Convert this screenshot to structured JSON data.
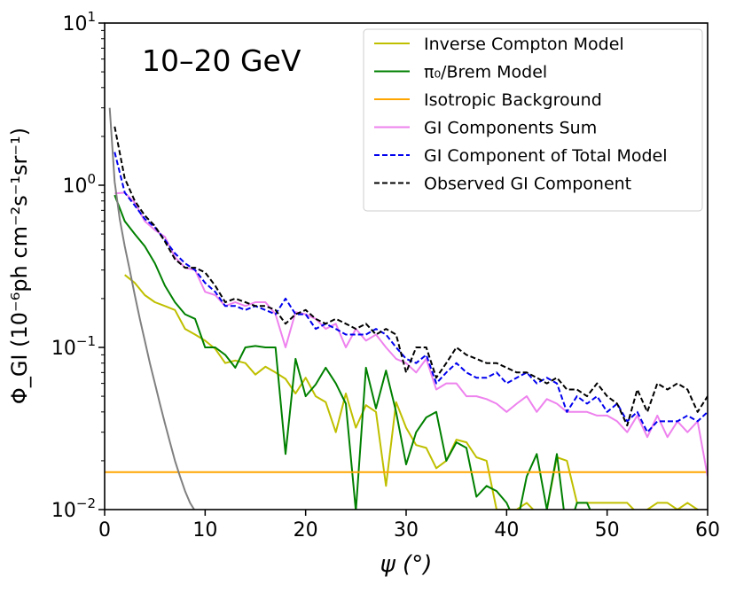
{
  "chart_data": {
    "type": "line",
    "title": "10–20 GeV",
    "xlabel": "ψ (°)",
    "ylabel": "Φ_GI (10⁻⁶ph cm⁻²s⁻¹sr⁻¹)",
    "xlim": [
      0,
      60
    ],
    "ylim_log10": [
      -2,
      1
    ],
    "y_scale": "log",
    "legend_position": "top-right",
    "x_ticks": [
      0,
      10,
      20,
      30,
      40,
      50,
      60
    ],
    "y_ticks_log10": [
      -2,
      -1,
      0,
      1
    ],
    "y_tick_mantissa": "10",
    "series": [
      {
        "name": "Inverse Compton Model",
        "color": "#bfbf00",
        "style": "solid",
        "x": [
          2,
          3,
          4,
          5,
          6,
          7,
          8,
          9,
          10,
          11,
          12,
          13,
          14,
          15,
          16,
          17,
          18,
          19,
          20,
          21,
          22,
          23,
          24,
          25,
          26,
          27,
          28,
          29,
          30,
          31,
          32,
          33,
          34,
          35,
          36,
          37,
          38,
          39,
          40,
          41,
          42,
          43,
          44,
          45,
          46,
          47,
          48,
          49,
          50,
          51,
          52,
          53,
          54,
          55,
          56,
          57,
          58,
          59,
          60
        ],
        "y": [
          0.28,
          0.25,
          0.21,
          0.19,
          0.18,
          0.17,
          0.13,
          0.12,
          0.11,
          0.098,
          0.08,
          0.083,
          0.08,
          0.068,
          0.076,
          0.07,
          0.064,
          0.052,
          0.065,
          0.05,
          0.046,
          0.03,
          0.052,
          0.032,
          0.044,
          0.04,
          0.014,
          0.046,
          0.032,
          0.025,
          0.024,
          0.018,
          0.02,
          0.027,
          0.026,
          0.021,
          0.02,
          0.01,
          0.01,
          0.01,
          0.011,
          0.0095,
          0.01,
          0.021,
          0.02,
          0.011,
          0.011,
          0.011,
          0.011,
          0.011,
          0.011,
          0.0095,
          0.01,
          0.011,
          0.011,
          0.01,
          0.011,
          0.01,
          0.0095
        ]
      },
      {
        "name": "π₀/Brem Model",
        "color": "#008000",
        "style": "solid",
        "x": [
          1,
          2,
          3,
          4,
          5,
          6,
          7,
          8,
          9,
          10,
          11,
          12,
          13,
          14,
          15,
          16,
          17,
          18,
          19,
          20,
          21,
          22,
          23,
          24,
          25,
          26,
          27,
          28,
          29,
          30,
          31,
          32,
          33,
          34,
          35,
          36,
          37,
          38,
          39,
          40,
          41,
          42,
          43,
          44,
          45,
          46,
          47,
          48,
          49,
          50,
          51,
          52,
          53,
          54,
          55,
          56,
          57,
          58,
          59,
          60
        ],
        "y": [
          0.87,
          0.6,
          0.5,
          0.42,
          0.33,
          0.24,
          0.19,
          0.16,
          0.15,
          0.1,
          0.1,
          0.09,
          0.075,
          0.1,
          0.102,
          0.1,
          0.1,
          0.022,
          0.085,
          0.05,
          0.059,
          0.075,
          0.06,
          0.045,
          0.0098,
          0.075,
          0.042,
          0.072,
          0.04,
          0.019,
          0.03,
          0.037,
          0.04,
          0.02,
          0.026,
          0.024,
          0.012,
          0.014,
          0.013,
          0.011,
          0.008,
          0.016,
          0.022,
          0.01,
          0.022,
          0.007,
          0.011,
          0.011,
          0.008,
          0.009,
          0.006,
          0.009,
          0.008,
          0.009,
          0.008,
          0.009,
          0.008,
          0.009,
          0.01,
          0.009
        ]
      },
      {
        "name": "Isotropic Background",
        "color": "#ffa500",
        "style": "solid",
        "x": [
          0,
          60
        ],
        "y": [
          0.017,
          0.017
        ]
      },
      {
        "name": "GI Components Sum",
        "color": "#ee82ee",
        "style": "solid",
        "x": [
          1,
          2,
          3,
          4,
          5,
          6,
          7,
          8,
          9,
          10,
          11,
          12,
          13,
          14,
          15,
          16,
          17,
          18,
          19,
          20,
          21,
          22,
          23,
          24,
          25,
          26,
          27,
          28,
          29,
          30,
          31,
          32,
          33,
          34,
          35,
          36,
          37,
          38,
          39,
          40,
          41,
          42,
          43,
          44,
          45,
          46,
          47,
          48,
          49,
          50,
          51,
          52,
          53,
          54,
          55,
          56,
          57,
          58,
          59,
          60
        ],
        "y": [
          0.89,
          0.9,
          0.78,
          0.6,
          0.53,
          0.48,
          0.36,
          0.31,
          0.3,
          0.22,
          0.21,
          0.18,
          0.19,
          0.18,
          0.19,
          0.19,
          0.16,
          0.1,
          0.165,
          0.16,
          0.15,
          0.13,
          0.14,
          0.1,
          0.13,
          0.11,
          0.12,
          0.1,
          0.085,
          0.08,
          0.07,
          0.085,
          0.055,
          0.06,
          0.06,
          0.05,
          0.05,
          0.048,
          0.045,
          0.04,
          0.045,
          0.05,
          0.04,
          0.048,
          0.045,
          0.04,
          0.04,
          0.04,
          0.038,
          0.038,
          0.035,
          0.03,
          0.038,
          0.028,
          0.038,
          0.028,
          0.035,
          0.03,
          0.035,
          0.016
        ]
      },
      {
        "name": "GI Component of Total Model",
        "color": "#0000ee",
        "style": "dashed",
        "x": [
          1,
          2,
          3,
          4,
          5,
          6,
          7,
          8,
          9,
          10,
          11,
          12,
          13,
          14,
          15,
          16,
          17,
          18,
          19,
          20,
          21,
          22,
          23,
          24,
          25,
          26,
          27,
          28,
          29,
          30,
          31,
          32,
          33,
          34,
          35,
          36,
          37,
          38,
          39,
          40,
          41,
          42,
          43,
          44,
          45,
          46,
          47,
          48,
          49,
          50,
          51,
          52,
          53,
          54,
          55,
          56,
          57,
          58,
          59,
          60
        ],
        "y": [
          1.6,
          0.9,
          0.75,
          0.62,
          0.55,
          0.46,
          0.38,
          0.33,
          0.3,
          0.25,
          0.22,
          0.18,
          0.18,
          0.17,
          0.18,
          0.17,
          0.16,
          0.2,
          0.16,
          0.16,
          0.13,
          0.14,
          0.13,
          0.12,
          0.12,
          0.12,
          0.13,
          0.12,
          0.1,
          0.085,
          0.08,
          0.09,
          0.06,
          0.07,
          0.08,
          0.07,
          0.065,
          0.065,
          0.07,
          0.06,
          0.065,
          0.07,
          0.06,
          0.065,
          0.06,
          0.04,
          0.05,
          0.045,
          0.05,
          0.04,
          0.045,
          0.035,
          0.04,
          0.03,
          0.035,
          0.035,
          0.035,
          0.038,
          0.035,
          0.04
        ]
      },
      {
        "name": "Observed GI Component",
        "color": "#000000",
        "style": "dashed",
        "x": [
          1,
          2,
          3,
          4,
          5,
          6,
          7,
          8,
          9,
          10,
          11,
          12,
          13,
          14,
          15,
          16,
          17,
          18,
          19,
          20,
          21,
          22,
          23,
          24,
          25,
          26,
          27,
          28,
          29,
          30,
          31,
          32,
          33,
          34,
          35,
          36,
          37,
          38,
          39,
          40,
          41,
          42,
          43,
          44,
          45,
          46,
          47,
          48,
          49,
          50,
          51,
          52,
          53,
          54,
          55,
          56,
          57,
          58,
          59,
          60
        ],
        "y": [
          2.3,
          1.1,
          0.8,
          0.65,
          0.56,
          0.45,
          0.35,
          0.31,
          0.31,
          0.29,
          0.24,
          0.19,
          0.2,
          0.19,
          0.18,
          0.18,
          0.17,
          0.14,
          0.16,
          0.17,
          0.15,
          0.14,
          0.15,
          0.14,
          0.13,
          0.14,
          0.12,
          0.13,
          0.12,
          0.07,
          0.1,
          0.1,
          0.065,
          0.08,
          0.1,
          0.09,
          0.085,
          0.08,
          0.08,
          0.075,
          0.07,
          0.07,
          0.065,
          0.06,
          0.065,
          0.055,
          0.055,
          0.05,
          0.06,
          0.05,
          0.045,
          0.033,
          0.055,
          0.04,
          0.06,
          0.055,
          0.06,
          0.055,
          0.04,
          0.05
        ]
      },
      {
        "name": "Gray curve",
        "color": "#808080",
        "style": "solid",
        "unlabeled": true,
        "x": [
          0.5,
          1,
          1.5,
          2,
          2.5,
          3,
          3.5,
          4,
          4.5,
          5,
          5.5,
          6,
          6.5,
          7,
          7.5,
          8,
          8.5,
          9
        ],
        "y": [
          3.0,
          1.05,
          0.62,
          0.42,
          0.3,
          0.21,
          0.15,
          0.11,
          0.08,
          0.06,
          0.045,
          0.034,
          0.026,
          0.02,
          0.016,
          0.013,
          0.011,
          0.0098
        ]
      }
    ]
  }
}
